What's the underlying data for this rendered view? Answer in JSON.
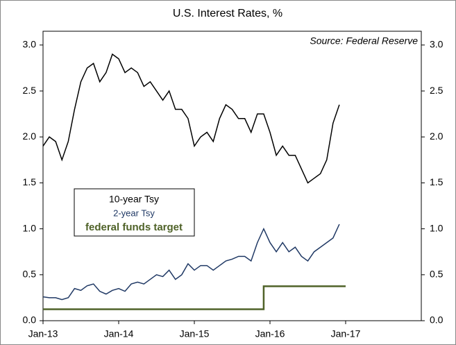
{
  "chart_data": {
    "type": "line",
    "title": "U.S. Interest Rates, %",
    "annotation": "Source: Federal Reserve",
    "x": [
      "Jan-13",
      "Feb-13",
      "Mar-13",
      "Apr-13",
      "May-13",
      "Jun-13",
      "Jul-13",
      "Aug-13",
      "Sep-13",
      "Oct-13",
      "Nov-13",
      "Dec-13",
      "Jan-14",
      "Feb-14",
      "Mar-14",
      "Apr-14",
      "May-14",
      "Jun-14",
      "Jul-14",
      "Aug-14",
      "Sep-14",
      "Oct-14",
      "Nov-14",
      "Dec-14",
      "Jan-15",
      "Feb-15",
      "Mar-15",
      "Apr-15",
      "May-15",
      "Jun-15",
      "Jul-15",
      "Aug-15",
      "Sep-15",
      "Oct-15",
      "Nov-15",
      "Dec-15",
      "Jan-16",
      "Feb-16",
      "Mar-16",
      "Apr-16",
      "May-16",
      "Jun-16",
      "Jul-16",
      "Aug-16",
      "Sep-16",
      "Oct-16",
      "Nov-16",
      "Dec-16",
      "Jan-17"
    ],
    "series": [
      {
        "name": "10-year Tsy",
        "color": "#000000",
        "values": [
          1.9,
          2.0,
          1.95,
          1.75,
          1.95,
          2.3,
          2.6,
          2.75,
          2.8,
          2.6,
          2.7,
          2.9,
          2.85,
          2.7,
          2.75,
          2.7,
          2.55,
          2.6,
          2.5,
          2.4,
          2.5,
          2.3,
          2.3,
          2.2,
          1.9,
          2.0,
          2.05,
          1.95,
          2.2,
          2.35,
          2.3,
          2.2,
          2.2,
          2.05,
          2.25,
          2.25,
          2.05,
          1.8,
          1.9,
          1.8,
          1.8,
          1.65,
          1.5,
          1.55,
          1.6,
          1.75,
          2.15,
          2.35,
          null
        ]
      },
      {
        "name": "2-year Tsy",
        "color": "#1f3864",
        "values": [
          0.26,
          0.25,
          0.25,
          0.23,
          0.25,
          0.35,
          0.33,
          0.38,
          0.4,
          0.32,
          0.29,
          0.33,
          0.35,
          0.32,
          0.4,
          0.42,
          0.4,
          0.45,
          0.5,
          0.48,
          0.55,
          0.45,
          0.5,
          0.62,
          0.55,
          0.6,
          0.6,
          0.55,
          0.6,
          0.65,
          0.67,
          0.7,
          0.7,
          0.65,
          0.85,
          1.0,
          0.85,
          0.75,
          0.85,
          0.75,
          0.8,
          0.7,
          0.65,
          0.75,
          0.8,
          0.85,
          0.9,
          1.05,
          null
        ]
      },
      {
        "name": "federal funds target",
        "color": "#4f6228",
        "drawstyle": "steps",
        "values": [
          0.125,
          0.125,
          0.125,
          0.125,
          0.125,
          0.125,
          0.125,
          0.125,
          0.125,
          0.125,
          0.125,
          0.125,
          0.125,
          0.125,
          0.125,
          0.125,
          0.125,
          0.125,
          0.125,
          0.125,
          0.125,
          0.125,
          0.125,
          0.125,
          0.125,
          0.125,
          0.125,
          0.125,
          0.125,
          0.125,
          0.125,
          0.125,
          0.125,
          0.125,
          0.125,
          0.375,
          0.375,
          0.375,
          0.375,
          0.375,
          0.375,
          0.375,
          0.375,
          0.375,
          0.375,
          0.375,
          0.375,
          0.375,
          0.375
        ]
      }
    ],
    "xlim": [
      "Jan-13",
      "Jan-18"
    ],
    "xticks": [
      "Jan-13",
      "Jan-14",
      "Jan-15",
      "Jan-16",
      "Jan-17"
    ],
    "ylim": [
      0,
      3.15
    ],
    "yticks": [
      {
        "value": 0,
        "label": "0.0"
      },
      {
        "value": 0.5,
        "label": "0.5"
      },
      {
        "value": 1,
        "label": "1.0"
      },
      {
        "value": 1.5,
        "label": "1.5"
      },
      {
        "value": 2,
        "label": "2.0"
      },
      {
        "value": 2.5,
        "label": "2.5"
      },
      {
        "value": 3,
        "label": "3.0"
      }
    ],
    "grid": false
  }
}
